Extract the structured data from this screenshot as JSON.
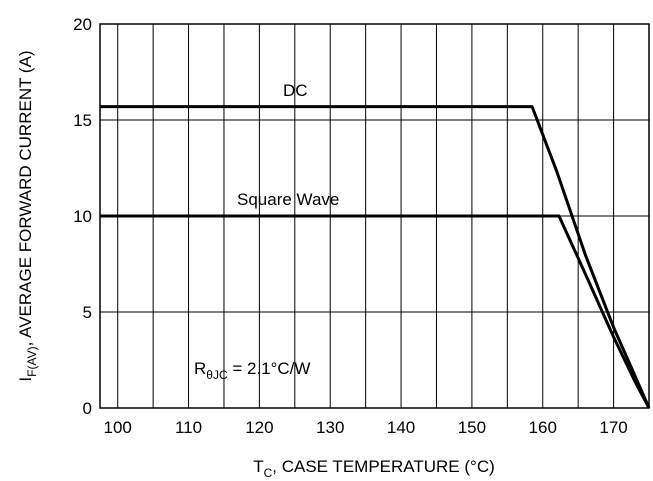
{
  "chart_data": {
    "type": "line",
    "xlabel": {
      "sym": "T",
      "sub": "C",
      "rest": ", CASE TEMPERATURE (°C)"
    },
    "ylabel": {
      "sym": "I",
      "sub": "F(AV)",
      "rest": ", AVERAGE FORWARD CURRENT (A)"
    },
    "xlim": [
      97.5,
      175
    ],
    "ylim": [
      0,
      20
    ],
    "xticks": [
      100,
      110,
      120,
      130,
      140,
      150,
      160,
      170
    ],
    "yticks": [
      0,
      5,
      10,
      15,
      20
    ],
    "grid": {
      "x_minor_step": 5,
      "y_step": 5
    },
    "series": [
      {
        "name": "DC",
        "x": [
          97.5,
          158.5,
          162,
          166,
          170,
          173,
          175
        ],
        "y": [
          15.7,
          15.7,
          12.3,
          8.0,
          4.2,
          1.7,
          0
        ]
      },
      {
        "name": "Square Wave",
        "x": [
          97.5,
          162.3,
          166,
          170,
          173,
          175
        ],
        "y": [
          10,
          10,
          7.0,
          3.7,
          1.4,
          0
        ]
      }
    ],
    "annotation": {
      "sym": "R",
      "sub": "θJC",
      "rest": " = 2.1°C/W"
    }
  }
}
